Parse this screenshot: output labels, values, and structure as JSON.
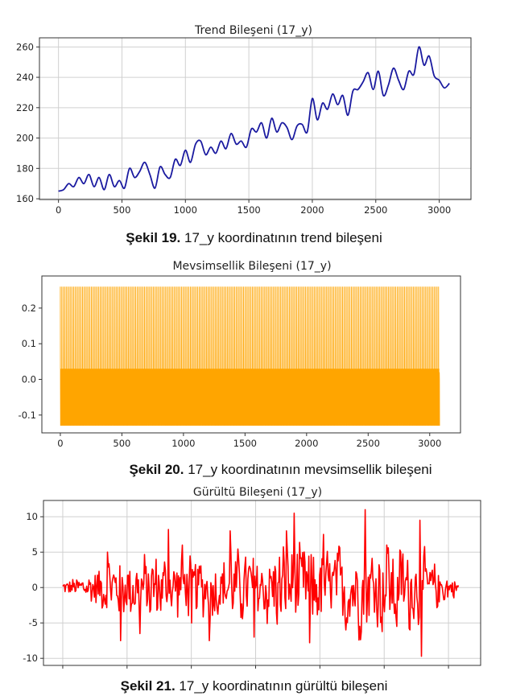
{
  "chart_data": [
    {
      "type": "line",
      "title": "Trend Bileşeni (17_y)",
      "color": "#1a1aa0",
      "xlim": [
        -150,
        3250
      ],
      "ylim": [
        159.5,
        266
      ],
      "xticks": [
        0,
        500,
        1000,
        1500,
        2000,
        2500,
        3000
      ],
      "yticks": [
        160,
        180,
        200,
        220,
        240,
        260
      ],
      "grid": true,
      "series": [
        {
          "x": [
            0,
            40,
            80,
            120,
            160,
            200,
            240,
            280,
            320,
            360,
            400,
            440,
            480,
            520,
            560,
            600,
            640,
            680,
            720,
            760,
            800,
            840,
            880,
            920,
            960,
            1000,
            1040,
            1080,
            1120,
            1160,
            1200,
            1240,
            1280,
            1320,
            1360,
            1400,
            1440,
            1480,
            1520,
            1560,
            1600,
            1640,
            1680,
            1720,
            1760,
            1800,
            1840,
            1880,
            1920,
            1960,
            2000,
            2040,
            2080,
            2120,
            2160,
            2200,
            2240,
            2280,
            2320,
            2360,
            2400,
            2440,
            2480,
            2520,
            2560,
            2600,
            2640,
            2680,
            2720,
            2760,
            2800,
            2840,
            2880,
            2920,
            2960,
            3000,
            3040,
            3080
          ],
          "y": [
            165,
            166,
            170,
            168,
            174,
            170,
            176,
            168,
            174,
            166,
            176,
            168,
            172,
            167,
            180,
            174,
            178,
            184,
            176,
            167,
            181,
            176,
            174,
            186,
            182,
            192,
            184,
            196,
            198,
            189,
            194,
            190,
            198,
            193,
            203,
            196,
            198,
            194,
            206,
            204,
            210,
            200,
            213,
            204,
            210,
            207,
            199,
            208,
            209,
            204,
            226,
            212,
            223,
            219,
            229,
            222,
            228,
            215,
            231,
            232,
            237,
            243,
            232,
            244,
            228,
            235,
            246,
            238,
            232,
            244,
            242,
            260,
            248,
            254,
            241,
            238,
            233,
            236
          ]
        }
      ]
    },
    {
      "type": "line",
      "title": "Mevsimsellik Bileşeni (17_y)",
      "color": "#ffa500",
      "xlim": [
        -150,
        3250
      ],
      "ylim": [
        -0.15,
        0.29
      ],
      "xticks": [
        0,
        500,
        1000,
        1500,
        2000,
        2500,
        3000
      ],
      "yticks": [
        -0.1,
        0.0,
        0.1,
        0.2
      ],
      "grid": false,
      "series": [
        {
          "x_range": [
            0,
            3080
          ],
          "period": 24,
          "pattern": [
            0.26,
            -0.02,
            -0.13,
            0.03,
            -0.06,
            -0.12,
            0.02,
            0.0,
            -0.13,
            0.03,
            -0.09,
            -0.06,
            0.26,
            -0.03,
            -0.13,
            0.02,
            -0.05,
            -0.12,
            0.03,
            -0.01,
            -0.13,
            0.02,
            -0.08,
            -0.06
          ]
        }
      ]
    },
    {
      "type": "line",
      "title": "Gürültü Bileşeni (17_y)",
      "color": "#ff0000",
      "xlim": [
        -150,
        3250
      ],
      "ylim": [
        -11,
        12.3
      ],
      "xticks_unlabeled": [
        0,
        500,
        1000,
        1500,
        2000,
        2500,
        3000
      ],
      "yticks": [
        -10,
        -5,
        0,
        5,
        10
      ],
      "grid": true,
      "series": [
        {
          "x_range": [
            0,
            3080
          ],
          "peaks": [
            [
              2350,
              11.0
            ],
            [
              1800,
              10.5
            ],
            [
              2780,
              9.5
            ],
            [
              1300,
              8.0
            ],
            [
              820,
              8.2
            ],
            [
              1740,
              8.0
            ],
            [
              930,
              6.0
            ],
            [
              2030,
              7.5
            ],
            [
              2520,
              6.0
            ],
            [
              350,
              5.0
            ],
            [
              1920,
              -7.8
            ],
            [
              2790,
              -9.7
            ],
            [
              450,
              -7.5
            ],
            [
              1140,
              -7.5
            ],
            [
              1490,
              -7.0
            ],
            [
              600,
              -6.5
            ],
            [
              2200,
              -6.0
            ],
            [
              2600,
              -5.5
            ],
            [
              1000,
              -5.0
            ]
          ],
          "noise_amplitude": [
            [
              0,
              0.7
            ],
            [
              150,
              1.5
            ],
            [
              400,
              3.5
            ],
            [
              700,
              4.0
            ],
            [
              1000,
              3.5
            ],
            [
              1300,
              4.0
            ],
            [
              1500,
              4.5
            ],
            [
              1800,
              5.0
            ],
            [
              2100,
              4.5
            ],
            [
              2400,
              5.5
            ],
            [
              2700,
              5.0
            ],
            [
              2950,
              2.0
            ],
            [
              3080,
              0.8
            ]
          ]
        }
      ]
    }
  ],
  "captions": [
    {
      "bold": "Şekil 19.",
      "text": " 17_y koordinatının trend bileşeni"
    },
    {
      "bold": "Şekil 20.",
      "text": " 17_y koordinatının mevsimsellik bileşeni"
    },
    {
      "bold": "Şekil 21.",
      "text": " 17_y koordinatının gürültü bileşeni"
    }
  ]
}
